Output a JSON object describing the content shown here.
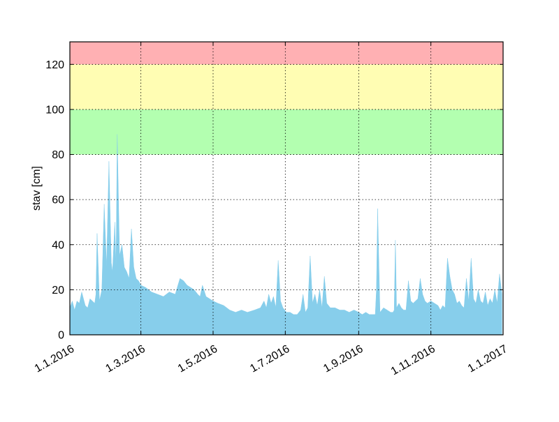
{
  "chart_data": {
    "type": "area",
    "title": "",
    "xlabel": "",
    "ylabel": "stav [cm]",
    "ylim": [
      0,
      130
    ],
    "xlim": [
      "2016-01-01",
      "2017-01-01"
    ],
    "grid": true,
    "x_ticks": [
      {
        "date": "2016-01-01",
        "label": "1.1.2016"
      },
      {
        "date": "2016-03-01",
        "label": "1.3.2016"
      },
      {
        "date": "2016-05-01",
        "label": "1.5.2016"
      },
      {
        "date": "2016-07-01",
        "label": "1.7.2016"
      },
      {
        "date": "2016-09-01",
        "label": "1.9.2016"
      },
      {
        "date": "2016-11-01",
        "label": "1.11.2016"
      },
      {
        "date": "2017-01-01",
        "label": "1.1.2017"
      }
    ],
    "y_ticks": [
      0,
      20,
      40,
      60,
      80,
      100,
      120
    ],
    "bands": [
      {
        "from": 80,
        "to": 100,
        "color": "#b3ffb0"
      },
      {
        "from": 100,
        "to": 120,
        "color": "#fffdb3"
      },
      {
        "from": 120,
        "to": 130,
        "color": "#ffb0b3"
      }
    ],
    "fill_color": "#87ceeb",
    "series": [
      {
        "x": [
          "2016-01-01",
          "2016-01-03",
          "2016-01-05",
          "2016-01-07",
          "2016-01-09",
          "2016-01-11",
          "2016-01-12",
          "2016-01-14",
          "2016-01-16",
          "2016-01-18",
          "2016-01-20",
          "2016-01-22",
          "2016-01-23",
          "2016-01-24",
          "2016-01-26",
          "2016-01-28",
          "2016-01-30",
          "2016-02-01",
          "2016-02-03",
          "2016-02-05",
          "2016-02-06",
          "2016-02-08",
          "2016-02-09",
          "2016-02-10",
          "2016-02-12",
          "2016-02-14",
          "2016-02-16",
          "2016-02-18",
          "2016-02-20",
          "2016-02-22",
          "2016-02-24",
          "2016-02-26",
          "2016-02-28",
          "2016-03-01",
          "2016-03-05",
          "2016-03-10",
          "2016-03-15",
          "2016-03-20",
          "2016-03-25",
          "2016-03-30",
          "2016-04-03",
          "2016-04-06",
          "2016-04-09",
          "2016-04-12",
          "2016-04-15",
          "2016-04-18",
          "2016-04-20",
          "2016-04-22",
          "2016-04-25",
          "2016-04-28",
          "2016-05-01",
          "2016-05-05",
          "2016-05-10",
          "2016-05-15",
          "2016-05-20",
          "2016-05-25",
          "2016-05-30",
          "2016-06-05",
          "2016-06-10",
          "2016-06-13",
          "2016-06-15",
          "2016-06-17",
          "2016-06-19",
          "2016-06-21",
          "2016-06-23",
          "2016-06-25",
          "2016-06-27",
          "2016-06-29",
          "2016-07-02",
          "2016-07-05",
          "2016-07-08",
          "2016-07-11",
          "2016-07-14",
          "2016-07-16",
          "2016-07-18",
          "2016-07-20",
          "2016-07-22",
          "2016-07-24",
          "2016-07-26",
          "2016-07-28",
          "2016-07-30",
          "2016-08-01",
          "2016-08-03",
          "2016-08-05",
          "2016-08-08",
          "2016-08-12",
          "2016-08-16",
          "2016-08-20",
          "2016-08-24",
          "2016-08-28",
          "2016-09-01",
          "2016-09-04",
          "2016-09-07",
          "2016-09-10",
          "2016-09-13",
          "2016-09-15",
          "2016-09-16",
          "2016-09-17",
          "2016-09-19",
          "2016-09-22",
          "2016-09-25",
          "2016-09-28",
          "2016-09-30",
          "2016-10-01",
          "2016-10-02",
          "2016-10-03",
          "2016-10-05",
          "2016-10-07",
          "2016-10-09",
          "2016-10-11",
          "2016-10-13",
          "2016-10-15",
          "2016-10-17",
          "2016-10-19",
          "2016-10-21",
          "2016-10-23",
          "2016-10-25",
          "2016-10-27",
          "2016-10-29",
          "2016-11-01",
          "2016-11-04",
          "2016-11-07",
          "2016-11-09",
          "2016-11-11",
          "2016-11-13",
          "2016-11-15",
          "2016-11-17",
          "2016-11-19",
          "2016-11-21",
          "2016-11-23",
          "2016-11-25",
          "2016-11-27",
          "2016-11-29",
          "2016-12-01",
          "2016-12-03",
          "2016-12-05",
          "2016-12-07",
          "2016-12-09",
          "2016-12-11",
          "2016-12-13",
          "2016-12-15",
          "2016-12-17",
          "2016-12-19",
          "2016-12-21",
          "2016-12-23",
          "2016-12-25",
          "2016-12-27",
          "2016-12-29",
          "2016-12-31"
        ],
        "y": [
          12,
          15,
          11,
          15,
          14,
          19,
          17,
          13,
          12,
          16,
          15,
          14,
          18,
          45,
          15,
          20,
          58,
          30,
          77,
          32,
          28,
          50,
          30,
          89,
          35,
          40,
          30,
          28,
          25,
          47,
          30,
          25,
          24,
          22,
          21,
          19,
          18,
          17,
          19,
          18,
          25,
          24,
          22,
          21,
          20,
          18,
          17,
          22,
          17,
          16,
          15,
          14,
          13,
          11,
          10,
          11,
          10,
          11,
          12,
          15,
          12,
          18,
          14,
          17,
          12,
          33,
          15,
          12,
          10,
          10,
          9,
          9,
          11,
          18,
          10,
          12,
          35,
          14,
          18,
          13,
          20,
          12,
          26,
          14,
          12,
          12,
          11,
          11,
          10,
          11,
          10,
          9,
          10,
          9,
          9,
          9,
          20,
          56,
          10,
          12,
          11,
          10,
          10,
          11,
          42,
          12,
          14,
          12,
          11,
          11,
          24,
          15,
          14,
          15,
          16,
          25,
          18,
          15,
          14,
          15,
          14,
          13,
          11,
          13,
          12,
          34,
          26,
          20,
          18,
          14,
          15,
          13,
          12,
          25,
          15,
          34,
          16,
          14,
          20,
          15,
          14,
          19,
          13,
          16,
          14,
          20,
          14,
          27,
          18
        ]
      }
    ]
  }
}
